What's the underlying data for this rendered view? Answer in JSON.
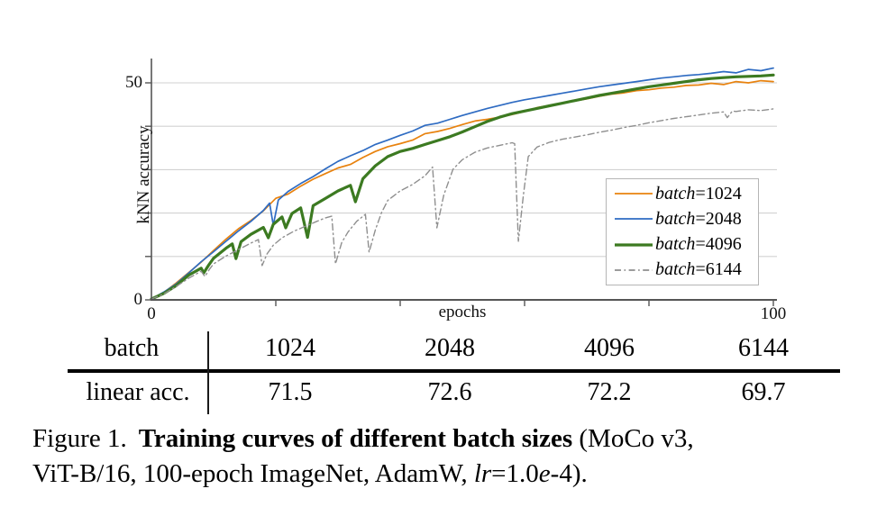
{
  "chart_data": {
    "type": "line",
    "title": "",
    "xlabel": "epochs",
    "ylabel": "kNN accuracy",
    "xlim": [
      0,
      100
    ],
    "ylim": [
      0,
      55
    ],
    "xticks": [
      0,
      20,
      40,
      60,
      80,
      100
    ],
    "xtick_labels_shown": [
      {
        "value": 0,
        "label": "0"
      },
      {
        "value": 100,
        "label": "100"
      }
    ],
    "yticks": [
      0,
      10,
      20,
      30,
      40,
      50
    ],
    "ytick_labels_shown": [
      {
        "value": 50,
        "label": "50"
      },
      {
        "value": 0,
        "label": "0"
      }
    ],
    "grid": "horizontal",
    "legend_position": "inside lower right",
    "axis_color": "#555555",
    "grid_color": "#d2d2d2",
    "series": [
      {
        "name": "batch=1024",
        "legend_word": "batch",
        "legend_value": "=1024",
        "color": "#E8820E",
        "style": "solid",
        "width": 1.7,
        "points": [
          [
            0,
            0.2
          ],
          [
            2,
            1.7
          ],
          [
            4,
            3.9
          ],
          [
            6,
            6.3
          ],
          [
            8,
            8.7
          ],
          [
            10,
            11.4
          ],
          [
            12,
            14.0
          ],
          [
            14,
            16.4
          ],
          [
            16,
            18.3
          ],
          [
            18,
            20.5
          ],
          [
            20,
            23.4
          ],
          [
            22,
            24.4
          ],
          [
            24,
            26.2
          ],
          [
            26,
            27.8
          ],
          [
            28,
            29.1
          ],
          [
            30,
            30.4
          ],
          [
            32,
            31.2
          ],
          [
            34,
            32.8
          ],
          [
            36,
            34.2
          ],
          [
            38,
            35.3
          ],
          [
            40,
            36.0
          ],
          [
            42,
            36.8
          ],
          [
            44,
            38.3
          ],
          [
            46,
            38.8
          ],
          [
            48,
            39.5
          ],
          [
            50,
            40.4
          ],
          [
            52,
            41.2
          ],
          [
            54,
            41.6
          ],
          [
            56,
            42.1
          ],
          [
            58,
            42.7
          ],
          [
            60,
            43.4
          ],
          [
            62,
            44.3
          ],
          [
            64,
            44.8
          ],
          [
            66,
            45.3
          ],
          [
            68,
            45.8
          ],
          [
            70,
            46.3
          ],
          [
            72,
            46.9
          ],
          [
            74,
            47.4
          ],
          [
            76,
            47.7
          ],
          [
            78,
            48.2
          ],
          [
            80,
            48.4
          ],
          [
            82,
            48.8
          ],
          [
            84,
            49.0
          ],
          [
            86,
            49.4
          ],
          [
            88,
            49.5
          ],
          [
            90,
            49.9
          ],
          [
            92,
            49.6
          ],
          [
            94,
            50.3
          ],
          [
            96,
            50.0
          ],
          [
            98,
            50.5
          ],
          [
            100,
            50.3
          ]
        ]
      },
      {
        "name": "batch=2048",
        "legend_word": "batch",
        "legend_value": "=2048",
        "color": "#2E6BC2",
        "style": "solid",
        "width": 1.7,
        "points": [
          [
            0,
            0.2
          ],
          [
            2,
            1.8
          ],
          [
            4,
            3.7
          ],
          [
            6,
            6.2
          ],
          [
            8,
            8.8
          ],
          [
            10,
            11.1
          ],
          [
            12,
            13.5
          ],
          [
            14,
            15.9
          ],
          [
            16,
            18.1
          ],
          [
            18,
            20.6
          ],
          [
            19,
            22.3
          ],
          [
            19.6,
            17.2
          ],
          [
            20.4,
            23.0
          ],
          [
            22,
            25.0
          ],
          [
            24,
            26.8
          ],
          [
            26,
            28.4
          ],
          [
            28,
            30.2
          ],
          [
            30,
            31.9
          ],
          [
            32,
            33.2
          ],
          [
            34,
            34.4
          ],
          [
            36,
            35.8
          ],
          [
            38,
            36.8
          ],
          [
            40,
            37.9
          ],
          [
            42,
            38.9
          ],
          [
            44,
            40.2
          ],
          [
            46,
            40.7
          ],
          [
            48,
            41.6
          ],
          [
            50,
            42.5
          ],
          [
            52,
            43.3
          ],
          [
            54,
            44.1
          ],
          [
            56,
            44.8
          ],
          [
            58,
            45.5
          ],
          [
            60,
            46.1
          ],
          [
            62,
            46.6
          ],
          [
            64,
            47.1
          ],
          [
            66,
            47.6
          ],
          [
            68,
            48.1
          ],
          [
            70,
            48.6
          ],
          [
            72,
            49.1
          ],
          [
            74,
            49.5
          ],
          [
            76,
            49.9
          ],
          [
            78,
            50.3
          ],
          [
            80,
            50.7
          ],
          [
            82,
            51.1
          ],
          [
            84,
            51.4
          ],
          [
            86,
            51.7
          ],
          [
            88,
            51.9
          ],
          [
            90,
            52.2
          ],
          [
            92,
            52.6
          ],
          [
            94,
            52.3
          ],
          [
            96,
            53.1
          ],
          [
            98,
            52.8
          ],
          [
            100,
            53.4
          ]
        ]
      },
      {
        "name": "batch=4096",
        "legend_word": "batch",
        "legend_value": "=4096",
        "color": "#3C7A21",
        "style": "solid",
        "width": 3.2,
        "points": [
          [
            0,
            0.2
          ],
          [
            2,
            1.5
          ],
          [
            4,
            3.3
          ],
          [
            6,
            5.7
          ],
          [
            8,
            7.3
          ],
          [
            8.4,
            6.2
          ],
          [
            9.2,
            8.0
          ],
          [
            10,
            9.6
          ],
          [
            12,
            11.9
          ],
          [
            13,
            12.9
          ],
          [
            13.6,
            9.5
          ],
          [
            14.4,
            13.4
          ],
          [
            16,
            15.1
          ],
          [
            18,
            16.7
          ],
          [
            18.8,
            14.3
          ],
          [
            19.6,
            17.4
          ],
          [
            21,
            19.1
          ],
          [
            21.6,
            16.6
          ],
          [
            22.6,
            19.9
          ],
          [
            24,
            21.2
          ],
          [
            25.1,
            14.4
          ],
          [
            26,
            21.7
          ],
          [
            28,
            23.4
          ],
          [
            30,
            25.1
          ],
          [
            32,
            26.4
          ],
          [
            32.8,
            22.6
          ],
          [
            34,
            27.9
          ],
          [
            36,
            30.9
          ],
          [
            38,
            33.0
          ],
          [
            40,
            34.2
          ],
          [
            42,
            34.9
          ],
          [
            44,
            35.8
          ],
          [
            46,
            36.7
          ],
          [
            48,
            37.6
          ],
          [
            50,
            38.7
          ],
          [
            52,
            39.9
          ],
          [
            54,
            41.1
          ],
          [
            56,
            42.1
          ],
          [
            58,
            42.9
          ],
          [
            60,
            43.5
          ],
          [
            62,
            44.1
          ],
          [
            64,
            44.7
          ],
          [
            66,
            45.3
          ],
          [
            68,
            45.9
          ],
          [
            70,
            46.5
          ],
          [
            72,
            47.1
          ],
          [
            74,
            47.6
          ],
          [
            76,
            48.1
          ],
          [
            78,
            48.6
          ],
          [
            80,
            49.1
          ],
          [
            82,
            49.5
          ],
          [
            84,
            49.9
          ],
          [
            86,
            50.3
          ],
          [
            88,
            50.7
          ],
          [
            90,
            51.0
          ],
          [
            92,
            51.2
          ],
          [
            94,
            51.4
          ],
          [
            96,
            51.5
          ],
          [
            98,
            51.6
          ],
          [
            100,
            51.8
          ]
        ]
      },
      {
        "name": "batch=6144",
        "legend_word": "batch",
        "legend_value": "=6144",
        "color": "#8F8F8F",
        "style": "dashdot",
        "width": 1.4,
        "points": [
          [
            0,
            0.2
          ],
          [
            2,
            1.4
          ],
          [
            4,
            3.1
          ],
          [
            6,
            5.0
          ],
          [
            8,
            6.6
          ],
          [
            8.6,
            5.4
          ],
          [
            9.4,
            7.2
          ],
          [
            10,
            8.3
          ],
          [
            12,
            10.1
          ],
          [
            14,
            11.6
          ],
          [
            16,
            13.1
          ],
          [
            17.2,
            13.9
          ],
          [
            17.8,
            7.9
          ],
          [
            18.6,
            10.6
          ],
          [
            19.6,
            12.6
          ],
          [
            21,
            14.3
          ],
          [
            23,
            15.9
          ],
          [
            25,
            17.1
          ],
          [
            26.6,
            18.1
          ],
          [
            28,
            18.9
          ],
          [
            29,
            19.3
          ],
          [
            29.6,
            8.3
          ],
          [
            30.6,
            13.2
          ],
          [
            31.6,
            15.6
          ],
          [
            33,
            18.1
          ],
          [
            34.4,
            19.7
          ],
          [
            35,
            11.0
          ],
          [
            36,
            16.1
          ],
          [
            37,
            20.1
          ],
          [
            38,
            22.9
          ],
          [
            40,
            25.1
          ],
          [
            42,
            26.6
          ],
          [
            44,
            28.6
          ],
          [
            45.2,
            30.6
          ],
          [
            45.9,
            16.6
          ],
          [
            47,
            24.1
          ],
          [
            48.5,
            30.1
          ],
          [
            50,
            32.3
          ],
          [
            52,
            34.0
          ],
          [
            54,
            35.0
          ],
          [
            56,
            35.6
          ],
          [
            58,
            36.2
          ],
          [
            58.4,
            36.0
          ],
          [
            59,
            13.5
          ],
          [
            59.8,
            24.0
          ],
          [
            60.6,
            33.0
          ],
          [
            62,
            35.2
          ],
          [
            64,
            36.3
          ],
          [
            66,
            37.0
          ],
          [
            68,
            37.5
          ],
          [
            70,
            38.0
          ],
          [
            72,
            38.6
          ],
          [
            74,
            39.1
          ],
          [
            76,
            39.7
          ],
          [
            78,
            40.2
          ],
          [
            80,
            40.8
          ],
          [
            82,
            41.3
          ],
          [
            84,
            41.8
          ],
          [
            86,
            42.2
          ],
          [
            88,
            42.6
          ],
          [
            90,
            43.0
          ],
          [
            92,
            43.3
          ],
          [
            92.6,
            42.0
          ],
          [
            93.4,
            43.5
          ],
          [
            94,
            43.4
          ],
          [
            96,
            43.8
          ],
          [
            98,
            43.6
          ],
          [
            100,
            44.0
          ]
        ]
      }
    ]
  },
  "table": {
    "row1_label": "batch",
    "row2_label": "linear acc.",
    "columns": [
      "1024",
      "2048",
      "4096",
      "6144"
    ],
    "values": [
      "71.5",
      "72.6",
      "72.2",
      "69.7"
    ]
  },
  "caption": {
    "line1": {
      "figure_label": "Figure 1.",
      "title_bold": "Training curves of different batch sizes",
      "tail": " (MoCo v3,"
    },
    "line2": {
      "prefix": "ViT-B/16, 100-epoch ImageNet, AdamW, ",
      "lr": "lr",
      "eq": "=1.0",
      "e": "e",
      "suffix": "-4)."
    }
  }
}
